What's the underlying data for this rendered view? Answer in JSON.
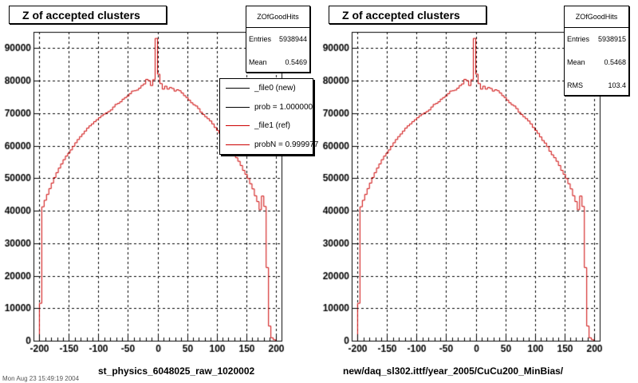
{
  "chart_data": [
    {
      "type": "histogram",
      "title": "Z of accepted clusters",
      "xlabel": "st_physics_6048025_raw_1020002",
      "ylabel": "",
      "xlim": [
        -210,
        210
      ],
      "ylim": [
        0,
        95000
      ],
      "grid": true,
      "xticks": [
        -200,
        -150,
        -100,
        -50,
        0,
        50,
        100,
        150,
        200
      ],
      "yticks": [
        0,
        10000,
        20000,
        30000,
        40000,
        50000,
        60000,
        70000,
        80000,
        90000
      ],
      "ytick_labels": [
        "0",
        "10000",
        "20000",
        "30000",
        "40000",
        "50000",
        "60000",
        "70000",
        "80000",
        "90000"
      ],
      "stats": {
        "name": "ZOfGoodHits",
        "rows": [
          {
            "label": "Entries",
            "value": "5938944"
          },
          {
            "label": "Mean",
            "value": "0.5469"
          }
        ]
      },
      "legend": {
        "placement": "top-right",
        "entries": [
          {
            "label": "_file0 (new)",
            "color": "#000000"
          },
          {
            "label": "prob = 1.000000",
            "color": "#000000"
          },
          {
            "label": "_file1 (ref)",
            "color": "#cc0000"
          },
          {
            "label": "probN = 0.999977",
            "color": "#cc0000"
          }
        ]
      },
      "footer": "Mon Aug 23 15:49:19 2004",
      "series": [
        {
          "name": "_file0 (new)",
          "color": "#000000",
          "x": [
            -200,
            200
          ],
          "values": [
            0,
            0
          ]
        },
        {
          "name": "_file1 (ref)",
          "color": "#cc0000",
          "x": [
            -200,
            200
          ],
          "values": [
            0,
            0
          ]
        }
      ]
    },
    {
      "type": "histogram",
      "title": "Z of accepted clusters",
      "xlabel": "new/daq_sl302.ittf/year_2005/CuCu200_MinBias/",
      "ylabel": "",
      "xlim": [
        -210,
        210
      ],
      "ylim": [
        0,
        95000
      ],
      "grid": true,
      "xticks": [
        -200,
        -150,
        -100,
        -50,
        0,
        50,
        100,
        150,
        200
      ],
      "yticks": [
        0,
        10000,
        20000,
        30000,
        40000,
        50000,
        60000,
        70000,
        80000,
        90000
      ],
      "ytick_labels": [
        "0",
        "10000",
        "20000",
        "30000",
        "40000",
        "50000",
        "60000",
        "70000",
        "80000",
        "90000"
      ],
      "stats": {
        "name": "ZOfGoodHits",
        "rows": [
          {
            "label": "Entries",
            "value": "5938915"
          },
          {
            "label": "Mean",
            "value": "0.5468"
          },
          {
            "label": "RMS",
            "value": "103.4"
          }
        ]
      },
      "series": [
        {
          "name": "",
          "color": "#cc0000",
          "x": [
            -200,
            200
          ],
          "values": [
            0,
            0
          ]
        }
      ]
    }
  ],
  "hist_profile": {
    "bin_width": 4,
    "x": [
      -198,
      -194,
      -190,
      -186,
      -182,
      -178,
      -174,
      -170,
      -166,
      -162,
      -158,
      -154,
      -150,
      -146,
      -142,
      -138,
      -134,
      -130,
      -126,
      -122,
      -118,
      -114,
      -110,
      -106,
      -102,
      -98,
      -94,
      -90,
      -86,
      -82,
      -78,
      -74,
      -70,
      -66,
      -62,
      -58,
      -54,
      -50,
      -46,
      -42,
      -38,
      -34,
      -30,
      -26,
      -22,
      -18,
      -14,
      -10,
      -6,
      -2,
      2,
      6,
      10,
      14,
      18,
      22,
      26,
      30,
      34,
      38,
      42,
      46,
      50,
      54,
      58,
      62,
      66,
      70,
      74,
      78,
      82,
      86,
      90,
      94,
      98,
      102,
      106,
      110,
      114,
      118,
      122,
      126,
      130,
      134,
      138,
      142,
      146,
      150,
      154,
      158,
      162,
      166,
      170,
      174,
      178,
      182,
      186,
      190,
      194,
      198
    ],
    "values": [
      11500,
      41200,
      43200,
      45000,
      46800,
      48500,
      50200,
      51700,
      53100,
      54400,
      55700,
      56800,
      57700,
      58700,
      59800,
      60900,
      61900,
      62800,
      63600,
      64500,
      65400,
      66100,
      66700,
      67400,
      68000,
      68600,
      69200,
      69700,
      70100,
      70500,
      71000,
      71900,
      72700,
      73000,
      73500,
      74300,
      74800,
      75300,
      76000,
      76800,
      76900,
      77100,
      77700,
      78500,
      79000,
      80400,
      80000,
      78500,
      80300,
      93000,
      82000,
      79100,
      77400,
      78300,
      77400,
      77900,
      77600,
      76800,
      77200,
      76900,
      76200,
      75400,
      74800,
      74000,
      73200,
      72600,
      72200,
      71400,
      70300,
      69600,
      68900,
      68300,
      67600,
      66700,
      65600,
      64700,
      63800,
      62700,
      61600,
      60800,
      59700,
      58300,
      57200,
      56300,
      55200,
      53900,
      52400,
      51200,
      49900,
      48300,
      46700,
      44600,
      42800,
      40300,
      44500,
      41300,
      22500,
      4500,
      900,
      300
    ]
  }
}
